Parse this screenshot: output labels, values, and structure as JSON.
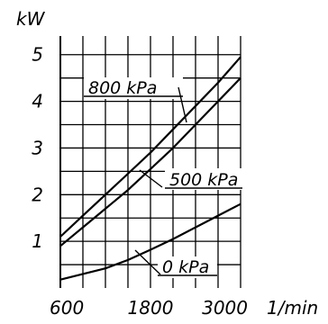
{
  "chart_data": {
    "type": "line",
    "title": "",
    "ylabel": "kW",
    "xlabel": "1/min",
    "ylim": [
      0,
      5.4
    ],
    "xlim": [
      600,
      3000
    ],
    "grid": true,
    "x_ticks": [
      600,
      1800,
      3000
    ],
    "x_tick_labels": [
      "600",
      "1800",
      "3000"
    ],
    "y_ticks": [
      1,
      2,
      3,
      4,
      5
    ],
    "y_tick_labels": [
      "1",
      "2",
      "3",
      "4",
      "5"
    ],
    "series": [
      {
        "name": "800 kPa",
        "x": [
          600,
          900,
          1200,
          1500,
          1800,
          2100,
          2400,
          2700,
          3000
        ],
        "y": [
          1.1,
          1.55,
          2.0,
          2.45,
          2.9,
          3.4,
          3.9,
          4.4,
          4.95
        ]
      },
      {
        "name": "500 kPa",
        "x": [
          600,
          900,
          1200,
          1500,
          1800,
          2100,
          2400,
          2700,
          3000
        ],
        "y": [
          0.9,
          1.3,
          1.7,
          2.1,
          2.55,
          3.0,
          3.5,
          4.0,
          4.5
        ]
      },
      {
        "name": "0 kPa",
        "x": [
          600,
          900,
          1200,
          1500,
          1800,
          2100,
          2400,
          2700,
          3000
        ],
        "y": [
          0.18,
          0.3,
          0.42,
          0.6,
          0.82,
          1.05,
          1.3,
          1.55,
          1.8
        ]
      }
    ]
  }
}
